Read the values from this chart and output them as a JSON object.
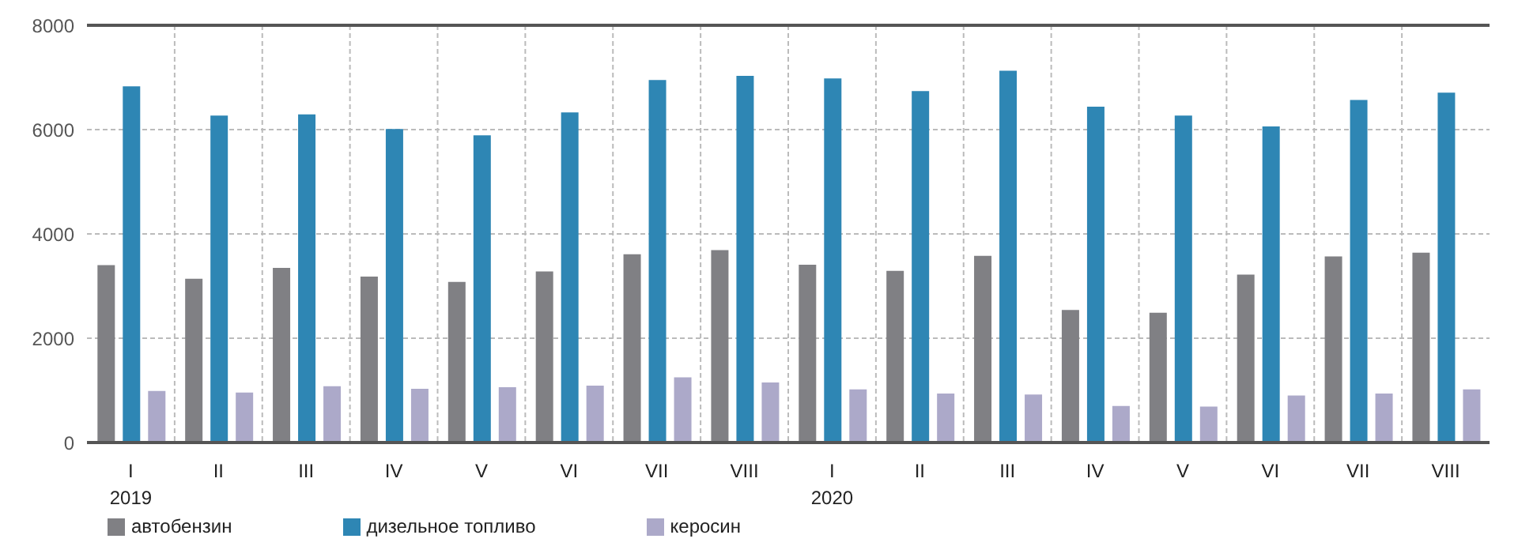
{
  "chart_data": {
    "type": "bar",
    "categories": [
      "I\n2019",
      "II",
      "III",
      "IV",
      "V",
      "VI",
      "VII",
      "VIII",
      "I\n2020",
      "II",
      "III",
      "IV",
      "V",
      "VI",
      "VII",
      "VIII"
    ],
    "series": [
      {
        "name": "автобензин",
        "color": "#808084",
        "values": [
          3400,
          3140,
          3350,
          3180,
          3080,
          3280,
          3610,
          3690,
          3410,
          3290,
          3580,
          2540,
          2490,
          3220,
          3570,
          3640
        ]
      },
      {
        "name": "дизельное топливо",
        "color": "#2e86b4",
        "values": [
          6830,
          6270,
          6290,
          6010,
          5890,
          6330,
          6950,
          7030,
          6980,
          6740,
          7130,
          6440,
          6270,
          6060,
          6570,
          6710
        ]
      },
      {
        "name": "керосин",
        "color": "#aca9c9",
        "values": [
          990,
          960,
          1080,
          1030,
          1060,
          1090,
          1250,
          1150,
          1020,
          940,
          920,
          700,
          690,
          900,
          940,
          1020
        ]
      }
    ],
    "ylim": [
      0,
      8000
    ],
    "yticks": [
      0,
      2000,
      4000,
      6000,
      8000
    ],
    "grid": true,
    "legend": "bottom left"
  }
}
